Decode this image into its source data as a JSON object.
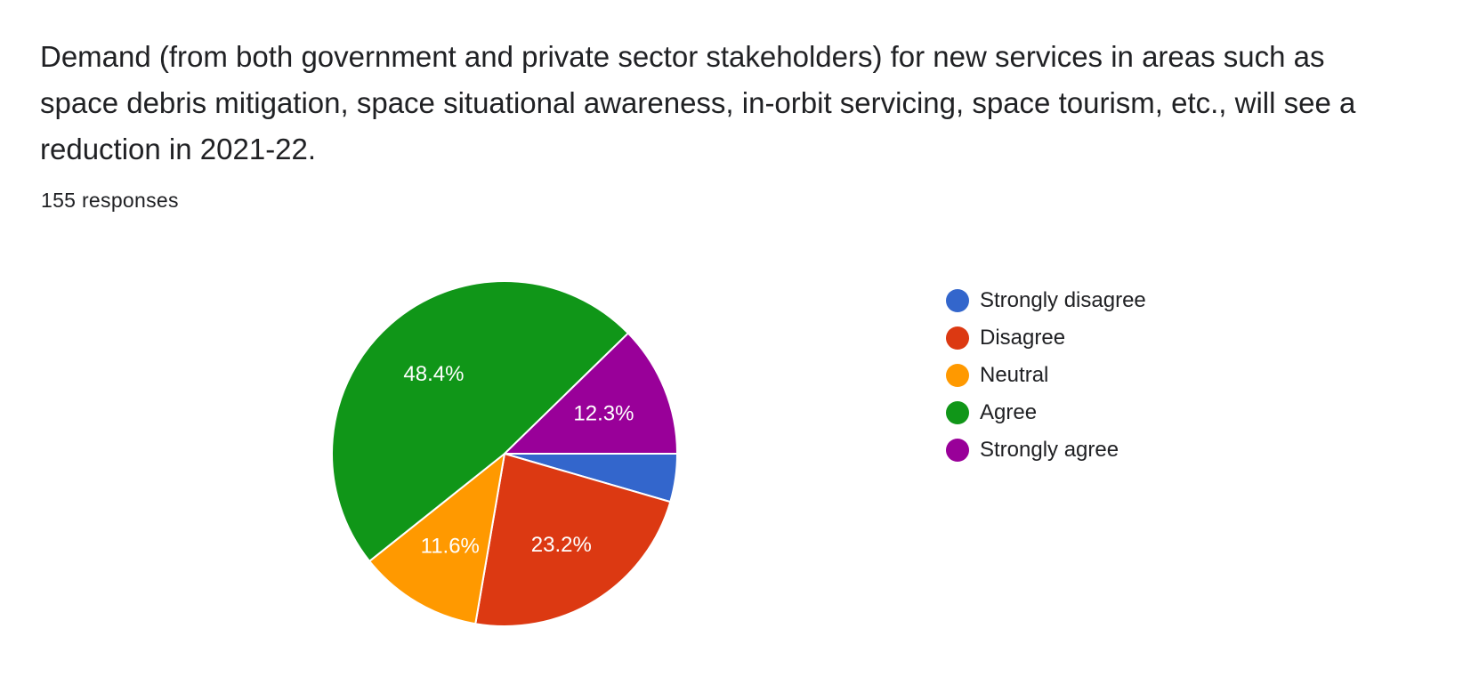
{
  "question": {
    "title": "Demand (from both government and private sector stakeholders) for new services in areas such as space debris mitigation, space situational awareness, in-orbit servicing, space tourism, etc., will see a reduction in 2021-22.",
    "responses": "155 responses"
  },
  "chart_data": {
    "type": "pie",
    "categories": [
      "Strongly disagree",
      "Disagree",
      "Neutral",
      "Agree",
      "Strongly agree"
    ],
    "values": [
      4.5,
      23.2,
      11.6,
      48.4,
      12.3
    ],
    "value_labels": [
      "",
      "23.2%",
      "11.6%",
      "48.4%",
      "12.3%"
    ],
    "colors": [
      "#3366cc",
      "#dc3912",
      "#ff9900",
      "#109618",
      "#990099"
    ],
    "legend_position": "right"
  }
}
